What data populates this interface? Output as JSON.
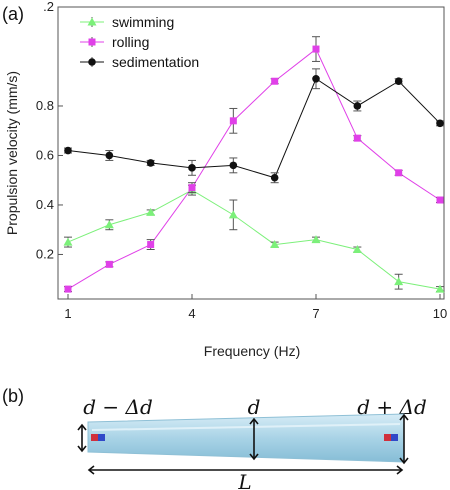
{
  "panel_a_label": "(a)",
  "panel_b_label": "(b)",
  "chart_data": {
    "type": "line",
    "title": "",
    "xlabel": "Frequency (Hz)",
    "ylabel": "Propulsion velocity (mm/s)",
    "x": [
      1,
      2,
      3,
      4,
      5,
      6,
      7,
      8,
      9,
      10
    ],
    "xticks": [
      1,
      4,
      7,
      10
    ],
    "xlim": [
      1,
      10
    ],
    "yticks": [
      0.2,
      0.4,
      0.6,
      0.8
    ],
    "ytick_labels": [
      "0.2",
      "0.4",
      "0.6",
      "0.8",
      ".2"
    ],
    "ytop_tick": 1.2,
    "ylim": [
      0.02,
      1.2
    ],
    "grid": false,
    "legend_position": "top-left",
    "series": [
      {
        "name": "swimming",
        "color": "#7cf07a",
        "marker": "triangle",
        "values": [
          0.25,
          0.32,
          0.37,
          0.46,
          0.36,
          0.24,
          0.26,
          0.22,
          0.09,
          0.06
        ],
        "errors": [
          0.02,
          0.02,
          0.01,
          0.02,
          0.06,
          0.01,
          0.01,
          0.01,
          0.03,
          0.01
        ]
      },
      {
        "name": "rolling",
        "color": "#e040e8",
        "marker": "square",
        "values": [
          0.06,
          0.16,
          0.24,
          0.47,
          0.74,
          0.9,
          1.03,
          0.67,
          0.53,
          0.42
        ],
        "errors": [
          0.01,
          0.01,
          0.02,
          0.02,
          0.05,
          0.01,
          0.05,
          0.01,
          0.01,
          0.01
        ]
      },
      {
        "name": "sedimentation",
        "color": "#111111",
        "marker": "circle",
        "values": [
          0.62,
          0.6,
          0.57,
          0.55,
          0.56,
          0.51,
          0.91,
          0.8,
          0.9,
          0.73
        ],
        "errors": [
          0.01,
          0.02,
          0.01,
          0.03,
          0.03,
          0.02,
          0.04,
          0.02,
          0.01,
          0.01
        ]
      }
    ]
  },
  "diagram": {
    "label_left": "d − Δd",
    "label_mid": "d",
    "label_right": "d + Δd",
    "label_length": "L",
    "rod_color": "#a9d3e6",
    "magnet_red": "#d0303c",
    "magnet_blue": "#3048c8"
  }
}
